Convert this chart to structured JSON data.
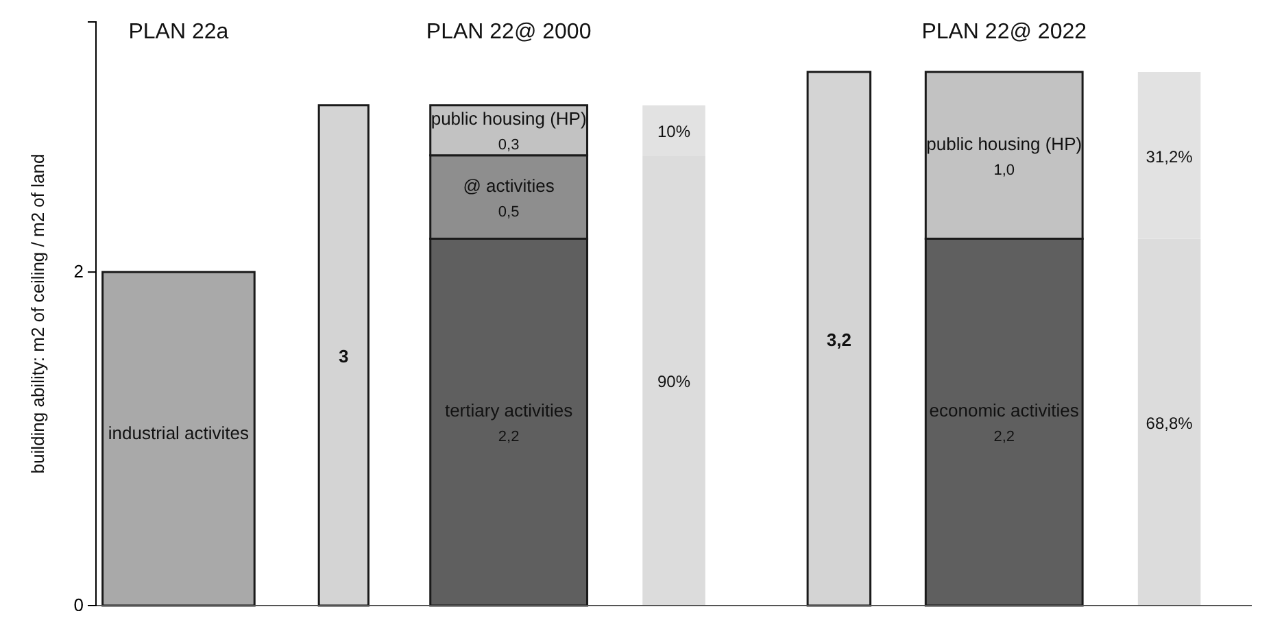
{
  "chart_data": {
    "type": "bar",
    "stacked": true,
    "ylabel": "building ability: m2 of ceiling / m2 of land",
    "annotations": [
      "PLAN 22a",
      "PLAN 22@ 2000",
      "PLAN 22@ 2022",
      "90%",
      "10%",
      "68,8%",
      "31,2%"
    ],
    "categories": [
      null,
      null,
      null,
      null,
      null,
      null,
      null
    ],
    "ylim": [
      0,
      3.5
    ],
    "yticks": [
      0,
      2
    ],
    "grid": false,
    "series": [
      {
        "name": "industrial activites",
        "color": "#a9a9a9",
        "values": [
          2,
          null,
          null,
          null,
          null,
          null,
          null
        ]
      },
      {
        "color": "#d4d4d4",
        "values": [
          null,
          3,
          null,
          null,
          3.2,
          null,
          null
        ],
        "value_labels": [
          null,
          "3",
          null,
          null,
          "3,2",
          null,
          null
        ]
      },
      {
        "name": "tertiary activities",
        "color": "#5f5f5f",
        "values": [
          null,
          null,
          2.2,
          null,
          null,
          null,
          null
        ],
        "value_labels": [
          null,
          null,
          "2,2",
          null,
          null,
          null,
          null
        ]
      },
      {
        "name": "economic activities",
        "color": "#5f5f5f",
        "values": [
          null,
          null,
          null,
          null,
          null,
          2.2,
          null
        ],
        "value_labels": [
          null,
          null,
          null,
          null,
          null,
          "2,2",
          null
        ]
      },
      {
        "name": "@ activities",
        "color": "#8e8e8e",
        "values": [
          null,
          null,
          0.5,
          null,
          null,
          null,
          null
        ],
        "value_labels": [
          null,
          null,
          "0,5",
          null,
          null,
          null,
          null
        ]
      },
      {
        "name": "public housing (HP)",
        "color": "#c2c2c2",
        "values": [
          null,
          null,
          0.3,
          null,
          null,
          1.0,
          null
        ],
        "value_labels": [
          null,
          null,
          "0,3",
          null,
          null,
          "1,0",
          null
        ]
      },
      {
        "color": "#dcdcdc",
        "values": [
          null,
          null,
          null,
          2.7,
          null,
          null,
          2.2
        ]
      },
      {
        "color": "#e2e2e2",
        "values": [
          null,
          null,
          null,
          0.3,
          null,
          null,
          1.0
        ]
      }
    ]
  }
}
